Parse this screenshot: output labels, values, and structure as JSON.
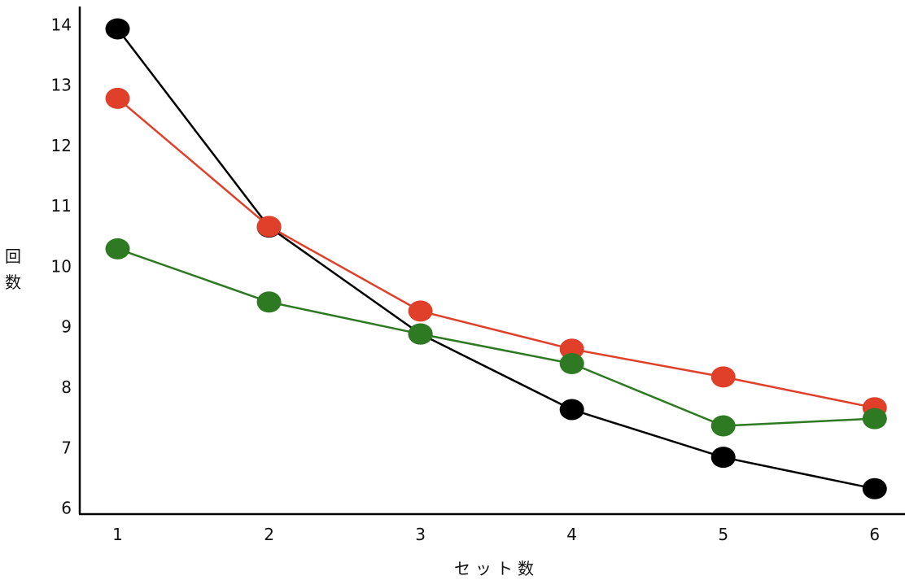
{
  "chart_data": {
    "type": "line",
    "title": "",
    "xlabel": "セット数",
    "ylabel": "回数",
    "x": [
      1,
      2,
      3,
      4,
      5,
      6
    ],
    "xlim": [
      0.75,
      6.2
    ],
    "ylim": [
      5.9,
      14.3
    ],
    "yticks": [
      6,
      7,
      8,
      9,
      10,
      11,
      12,
      13,
      14
    ],
    "grid": false,
    "legend": "none",
    "series": [
      {
        "color": "#000000",
        "values": [
          13.93,
          10.65,
          8.88,
          7.63,
          6.84,
          6.32
        ]
      },
      {
        "color": "#e0402a",
        "values": [
          12.78,
          10.66,
          9.26,
          8.63,
          8.17,
          7.66
        ]
      },
      {
        "color": "#2e7a22",
        "values": [
          10.29,
          9.41,
          8.88,
          8.39,
          7.36,
          7.48
        ]
      }
    ]
  }
}
